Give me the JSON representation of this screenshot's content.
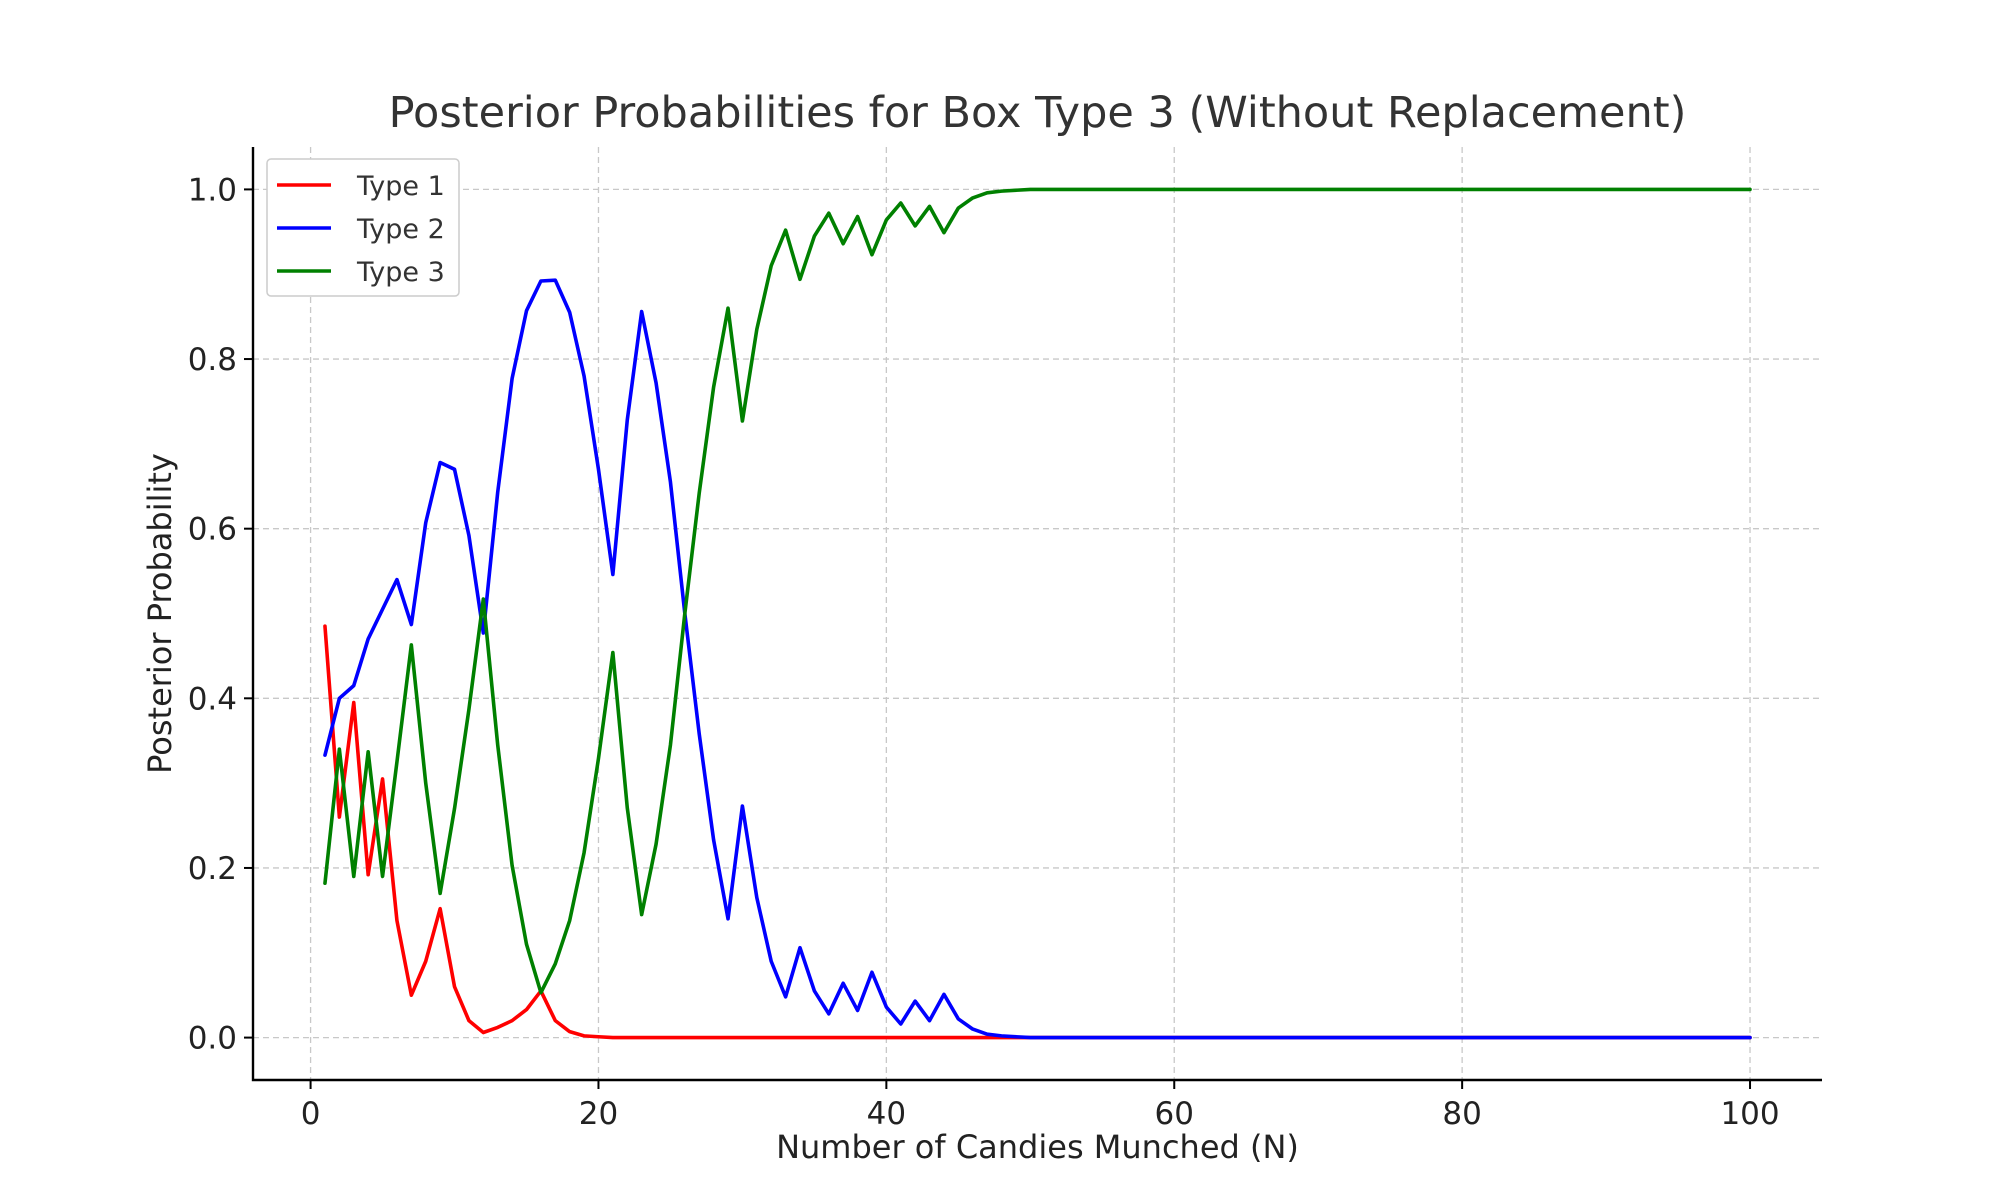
{
  "chart_data": {
    "type": "line",
    "title": "Posterior Probabilities for Box Type 3 (Without Replacement)",
    "xlabel": "Number of Candies Munched (N)",
    "ylabel": "Posterior Probability",
    "xlim": [
      -4,
      105
    ],
    "ylim": [
      -0.05,
      1.05
    ],
    "x_ticks": [
      0,
      20,
      40,
      60,
      80,
      100
    ],
    "x_tick_labels": [
      "0",
      "20",
      "40",
      "60",
      "80",
      "100"
    ],
    "y_ticks": [
      0.0,
      0.2,
      0.4,
      0.6,
      0.8,
      1.0
    ],
    "y_tick_labels": [
      "0.0",
      "0.2",
      "0.4",
      "0.6",
      "0.8",
      "1.0"
    ],
    "grid": true,
    "legend_position": "upper-left",
    "series": [
      {
        "name": "Type 1",
        "color": "#ff0000",
        "points": [
          [
            1,
            0.485
          ],
          [
            2,
            0.26
          ],
          [
            3,
            0.395
          ],
          [
            4,
            0.192
          ],
          [
            5,
            0.305
          ],
          [
            6,
            0.138
          ],
          [
            7,
            0.05
          ],
          [
            8,
            0.09
          ],
          [
            9,
            0.152
          ],
          [
            10,
            0.06
          ],
          [
            11,
            0.02
          ],
          [
            12,
            0.006
          ],
          [
            13,
            0.012
          ],
          [
            14,
            0.02
          ],
          [
            15,
            0.033
          ],
          [
            16,
            0.055
          ],
          [
            17,
            0.02
          ],
          [
            18,
            0.007
          ],
          [
            19,
            0.002
          ],
          [
            20,
            0.001
          ],
          [
            21,
            0.0
          ],
          [
            100,
            0.0
          ]
        ]
      },
      {
        "name": "Type 2",
        "color": "#0000ff",
        "points": [
          [
            1,
            0.333
          ],
          [
            2,
            0.4
          ],
          [
            3,
            0.415
          ],
          [
            4,
            0.47
          ],
          [
            5,
            0.505
          ],
          [
            6,
            0.54
          ],
          [
            7,
            0.487
          ],
          [
            8,
            0.607
          ],
          [
            9,
            0.678
          ],
          [
            10,
            0.67
          ],
          [
            11,
            0.592
          ],
          [
            12,
            0.477
          ],
          [
            13,
            0.643
          ],
          [
            14,
            0.777
          ],
          [
            15,
            0.857
          ],
          [
            16,
            0.892
          ],
          [
            17,
            0.893
          ],
          [
            18,
            0.855
          ],
          [
            19,
            0.78
          ],
          [
            20,
            0.67
          ],
          [
            21,
            0.546
          ],
          [
            22,
            0.728
          ],
          [
            23,
            0.856
          ],
          [
            24,
            0.772
          ],
          [
            25,
            0.655
          ],
          [
            26,
            0.5
          ],
          [
            27,
            0.358
          ],
          [
            28,
            0.233
          ],
          [
            29,
            0.14
          ],
          [
            30,
            0.273
          ],
          [
            31,
            0.165
          ],
          [
            32,
            0.09
          ],
          [
            33,
            0.048
          ],
          [
            34,
            0.106
          ],
          [
            35,
            0.055
          ],
          [
            36,
            0.028
          ],
          [
            37,
            0.064
          ],
          [
            38,
            0.032
          ],
          [
            39,
            0.077
          ],
          [
            40,
            0.036
          ],
          [
            41,
            0.016
          ],
          [
            42,
            0.043
          ],
          [
            43,
            0.02
          ],
          [
            44,
            0.051
          ],
          [
            45,
            0.022
          ],
          [
            46,
            0.01
          ],
          [
            47,
            0.004
          ],
          [
            48,
            0.002
          ],
          [
            50,
            0.0
          ],
          [
            100,
            0.0
          ]
        ]
      },
      {
        "name": "Type 3",
        "color": "#008000",
        "points": [
          [
            1,
            0.182
          ],
          [
            2,
            0.34
          ],
          [
            3,
            0.19
          ],
          [
            4,
            0.337
          ],
          [
            5,
            0.19
          ],
          [
            6,
            0.325
          ],
          [
            7,
            0.463
          ],
          [
            8,
            0.3
          ],
          [
            9,
            0.17
          ],
          [
            10,
            0.27
          ],
          [
            11,
            0.387
          ],
          [
            12,
            0.517
          ],
          [
            13,
            0.345
          ],
          [
            14,
            0.203
          ],
          [
            15,
            0.11
          ],
          [
            16,
            0.053
          ],
          [
            17,
            0.087
          ],
          [
            18,
            0.138
          ],
          [
            19,
            0.218
          ],
          [
            20,
            0.329
          ],
          [
            21,
            0.454
          ],
          [
            22,
            0.271
          ],
          [
            23,
            0.145
          ],
          [
            24,
            0.228
          ],
          [
            25,
            0.345
          ],
          [
            26,
            0.5
          ],
          [
            27,
            0.642
          ],
          [
            28,
            0.767
          ],
          [
            29,
            0.86
          ],
          [
            30,
            0.727
          ],
          [
            31,
            0.835
          ],
          [
            32,
            0.91
          ],
          [
            33,
            0.952
          ],
          [
            34,
            0.894
          ],
          [
            35,
            0.945
          ],
          [
            36,
            0.972
          ],
          [
            37,
            0.936
          ],
          [
            38,
            0.968
          ],
          [
            39,
            0.923
          ],
          [
            40,
            0.964
          ],
          [
            41,
            0.984
          ],
          [
            42,
            0.957
          ],
          [
            43,
            0.98
          ],
          [
            44,
            0.949
          ],
          [
            45,
            0.978
          ],
          [
            46,
            0.99
          ],
          [
            47,
            0.996
          ],
          [
            48,
            0.998
          ],
          [
            50,
            1.0
          ],
          [
            100,
            1.0
          ]
        ]
      }
    ]
  }
}
